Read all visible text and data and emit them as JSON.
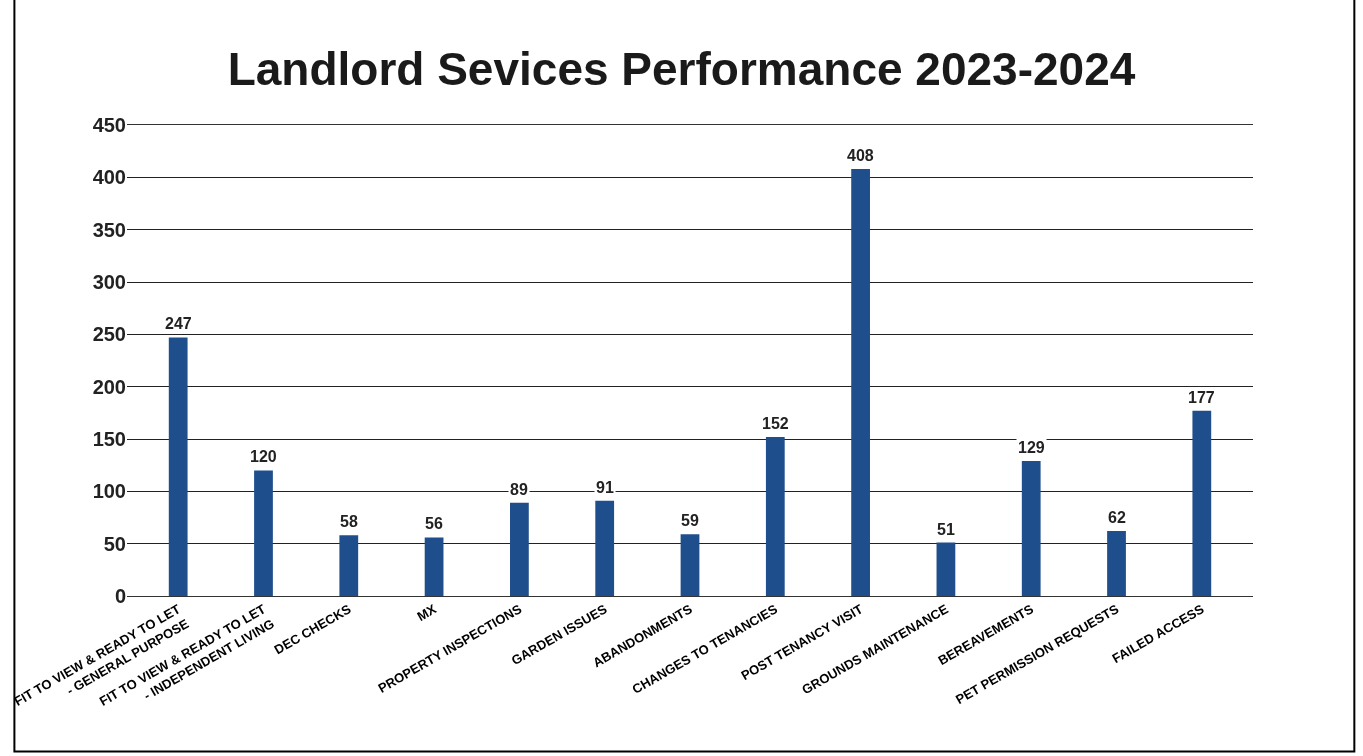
{
  "chart_data": {
    "type": "bar",
    "title": "Landlord Sevices Performance 2023-2024",
    "categories": [
      "FIT TO VIEW & READY TO LET - GENERAL PURPOSE",
      "FIT TO VIEW & READY TO LET - INDEPENDENT LIVING",
      "DEC CHECKS",
      "MX",
      "PROPERTY INSPECTIONS",
      "GARDEN ISSUES",
      "ABANDONMENTS",
      "CHANGES TO TENANCIES",
      "POST TENANCY VISIT",
      "GROUNDS MAINTENANCE",
      "BEREAVEMENTS",
      "PET PERMISSION REQUESTS",
      "FAILED ACCESS"
    ],
    "values": [
      247,
      120,
      58,
      56,
      89,
      91,
      59,
      152,
      408,
      51,
      129,
      62,
      177
    ],
    "color": "#1f4e8c",
    "ylim": [
      0,
      450
    ],
    "yticks": [
      0,
      50,
      100,
      150,
      200,
      250,
      300,
      350,
      400,
      450
    ],
    "grid": "y",
    "data_labels": true
  }
}
